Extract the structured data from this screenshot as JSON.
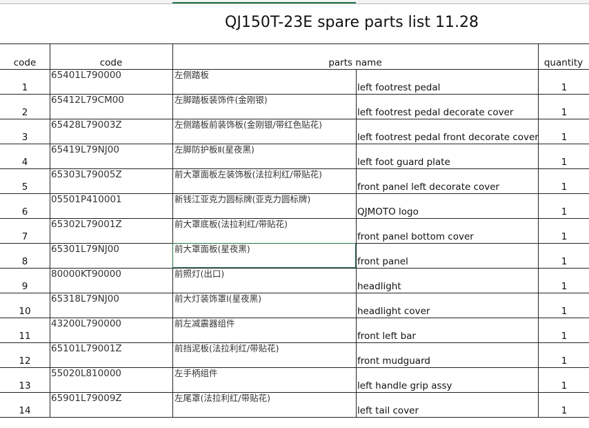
{
  "title": "QJ150T-23E spare parts list 11.28",
  "headers": [
    "code",
    "code",
    "parts name",
    "quantity"
  ],
  "rows": [
    {
      "no": 1,
      "code": "65401L790000",
      "name_cn": "左侧踏板",
      "name_en": "left footrest pedal",
      "quantity": 1
    },
    {
      "no": 2,
      "code": "65412L79CM00",
      "name_cn": "左脚踏板装饰件(金刚银)",
      "name_en": "left footrest pedal decorate cover",
      "quantity": 1
    },
    {
      "no": 3,
      "code": "65428L79003Z",
      "name_cn": "左侧踏板前装饰板(金刚银/带红色贴花)",
      "name_en": "left footrest pedal front decorate cover",
      "quantity": 1
    },
    {
      "no": 4,
      "code": "65419L79NJ00",
      "name_cn": "左脚防护板Ⅱ(星夜黑)",
      "name_en": "left foot guard plate",
      "quantity": 1
    },
    {
      "no": 5,
      "code": "65303L79005Z",
      "name_cn": "前大罩面板左装饰板(法拉利红/带贴花)",
      "name_en": "front panel left decorate cover",
      "quantity": 1
    },
    {
      "no": 6,
      "code": "05501P410001",
      "name_cn": "新钱江亚克力圆标牌(亚克力圆标牌)",
      "name_en": "QJMOTO logo",
      "quantity": 1
    },
    {
      "no": 7,
      "code": "65302L79001Z",
      "name_cn": "前大罩底板(法拉利红/带贴花)",
      "name_en": "front panel bottom cover",
      "quantity": 1
    },
    {
      "no": 8,
      "code": "65301L79NJ00",
      "name_cn": "前大罩面板(星夜黑)",
      "name_en": "front panel",
      "quantity": 1
    },
    {
      "no": 9,
      "code": "80000KT90000",
      "name_cn": "前照灯(出口)",
      "name_en": "headlight",
      "quantity": 1
    },
    {
      "no": 10,
      "code": "65318L79NJ00",
      "name_cn": "前大灯装饰罩Ⅰ(星夜黑)",
      "name_en": "headlight cover",
      "quantity": 1
    },
    {
      "no": 11,
      "code": "43200L790000",
      "name_cn": "前左减震器组件",
      "name_en": "front left bar",
      "quantity": 1
    },
    {
      "no": 12,
      "code": "65101L79001Z",
      "name_cn": "前挡泥板(法拉利红/带贴花)",
      "name_en": "front mudguard",
      "quantity": 1
    },
    {
      "no": 13,
      "code": "55020L810000",
      "name_cn": "左手柄组件",
      "name_en": "left handle grip assy",
      "quantity": 1
    },
    {
      "no": 14,
      "code": "65901L79009Z",
      "name_cn": "左尾罩(法拉利红/带贴花)",
      "name_en": "left tail cover",
      "quantity": 1
    }
  ]
}
